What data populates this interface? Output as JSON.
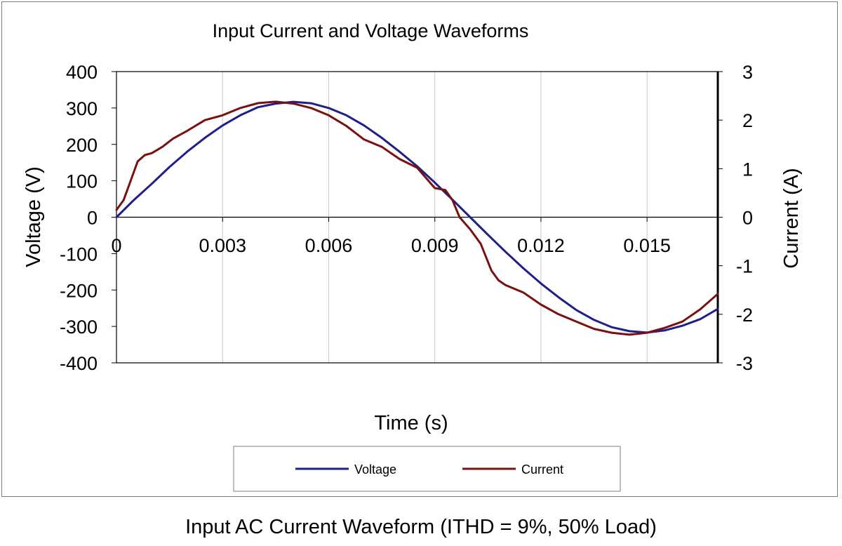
{
  "caption": "Input AC Current Waveform (ITHD = 9%, 50% Load)",
  "chart_data": {
    "type": "line",
    "title": "Input Current and Voltage Waveforms",
    "xlabel": "Time (s)",
    "ylabel": "Voltage (V)",
    "y2label": "Current (A)",
    "xlim": [
      0,
      0.017
    ],
    "ylim": [
      -400,
      400
    ],
    "y2lim": [
      -3,
      3
    ],
    "xticks": [
      0,
      0.003,
      0.006,
      0.009,
      0.012,
      0.015
    ],
    "xtick_labels": [
      "0",
      "0.003",
      "0.006",
      "0.009",
      "0.012",
      "0.015"
    ],
    "yticks": [
      400,
      300,
      200,
      100,
      0,
      -100,
      -200,
      -300,
      -400
    ],
    "ytick_labels": [
      "400",
      "300",
      "200",
      "100",
      "0",
      "-100",
      "-200",
      "-300",
      "-400"
    ],
    "y2ticks": [
      3,
      2,
      1,
      0,
      -1,
      -2,
      -3
    ],
    "y2tick_labels": [
      "3",
      "2",
      "1",
      "0",
      "-1",
      "-2",
      "-3"
    ],
    "grid": "vertical",
    "legend": "bottom",
    "series": [
      {
        "name": "Voltage",
        "axis": "left",
        "color": "#1f1f8c",
        "x": [
          0,
          0.0005,
          0.001,
          0.0015,
          0.002,
          0.0025,
          0.003,
          0.0035,
          0.004,
          0.0045,
          0.005,
          0.0055,
          0.006,
          0.0065,
          0.007,
          0.0075,
          0.008,
          0.0085,
          0.009,
          0.0095,
          0.01,
          0.0105,
          0.011,
          0.0115,
          0.012,
          0.0125,
          0.013,
          0.0135,
          0.014,
          0.0145,
          0.015,
          0.0155,
          0.016,
          0.0165,
          0.017
        ],
        "values": [
          0,
          48,
          92,
          138,
          180,
          218,
          252,
          280,
          302,
          312,
          317,
          313,
          300,
          280,
          252,
          218,
          180,
          140,
          95,
          48,
          0,
          -48,
          -95,
          -140,
          -182,
          -220,
          -255,
          -282,
          -302,
          -313,
          -317,
          -311,
          -298,
          -280,
          -252
        ]
      },
      {
        "name": "Current",
        "axis": "right",
        "color": "#7b1010",
        "x": [
          0,
          0.0002,
          0.0004,
          0.0006,
          0.0008,
          0.001,
          0.0013,
          0.0016,
          0.002,
          0.0025,
          0.003,
          0.0035,
          0.004,
          0.0045,
          0.005,
          0.0055,
          0.006,
          0.0065,
          0.007,
          0.0075,
          0.008,
          0.0085,
          0.009,
          0.0093,
          0.0095,
          0.0097,
          0.01,
          0.0103,
          0.0106,
          0.0108,
          0.011,
          0.0115,
          0.012,
          0.0125,
          0.013,
          0.0135,
          0.014,
          0.0145,
          0.015,
          0.0155,
          0.016,
          0.0165,
          0.017
        ],
        "values": [
          0.15,
          0.35,
          0.75,
          1.15,
          1.28,
          1.32,
          1.45,
          1.62,
          1.78,
          2.0,
          2.1,
          2.25,
          2.35,
          2.38,
          2.34,
          2.25,
          2.1,
          1.88,
          1.6,
          1.45,
          1.2,
          1.02,
          0.6,
          0.56,
          0.35,
          0.0,
          -0.25,
          -0.55,
          -1.1,
          -1.3,
          -1.4,
          -1.55,
          -1.8,
          -2.0,
          -2.15,
          -2.3,
          -2.38,
          -2.42,
          -2.38,
          -2.28,
          -2.15,
          -1.9,
          -1.58
        ]
      }
    ]
  }
}
